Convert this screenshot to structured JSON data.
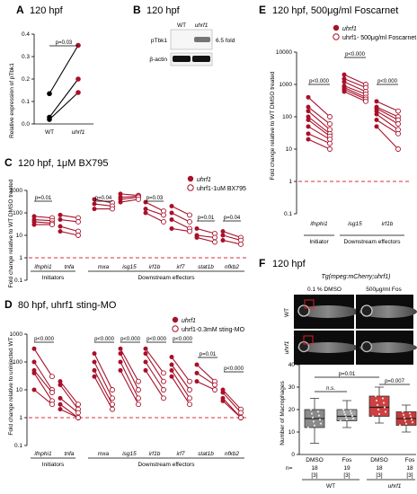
{
  "panels": {
    "A": {
      "letter": "A",
      "title": "120 hpf",
      "ylabel": "Relative expression of pTbk1",
      "xcats": [
        "WT",
        "uhrf1"
      ],
      "p": "p=0.03"
    },
    "B": {
      "letter": "B",
      "title": "120 hpf",
      "lanes": [
        "WT",
        "uhrf1"
      ],
      "rows": [
        "pTbk1",
        "β-actin"
      ],
      "fold": "6.5 fold"
    },
    "C": {
      "letter": "C",
      "title": "120 hpf, 1μM BX795",
      "ylabel": "Fold change relative to WT DMSO treated",
      "legend": [
        "uhrf1",
        "uhrf1-1uM BX795"
      ],
      "genes": [
        "ifnphi1",
        "tnfa",
        "mxa",
        "isg15",
        "irf1b",
        "irf7",
        "stat1b",
        "nfkb2"
      ],
      "groups": [
        "Initiators",
        "Downstream effectors"
      ],
      "pvals": [
        "p=0.01",
        "p=0.04",
        "p=0.03",
        "p=0.01",
        "p=0.04"
      ]
    },
    "D": {
      "letter": "D",
      "title": "80 hpf, uhrf1 sting-MO",
      "ylabel": "Fold change relative to uninjected WT",
      "legend": [
        "uhrf1",
        "uhrf1-0.3mM sting-MO"
      ],
      "genes": [
        "ifnphi1",
        "tnfa",
        "mxa",
        "isg15",
        "irf1b",
        "irf7",
        "stat1b",
        "nfkb2"
      ],
      "groups": [
        "Initiators",
        "Downstream effectors"
      ],
      "pvals": [
        "p<0.000",
        "p<0.000",
        "p<0.000",
        "p<0.000",
        "p<0.000",
        "p=0.01",
        "p<0.000"
      ]
    },
    "E": {
      "letter": "E",
      "title": "120 hpf, 500μg/ml Foscarnet",
      "ylabel": "Fold change relative to WT DMSO treated",
      "legend": [
        "uhrf1",
        "uhrf1- 500μg/ml Foscarnet"
      ],
      "genes": [
        "ifnphi1",
        "isg15",
        "irf1b"
      ],
      "groups": [
        "Initiator",
        "Downstream effectors"
      ],
      "pvals": [
        "p<0.000",
        "p<0.000",
        "p<0.000"
      ]
    },
    "F": {
      "letter": "F",
      "title": "120 hpf",
      "subtitle": "Tg(mpeg:mCherry;uhrf1)",
      "cols": [
        "0.1 % DMSO",
        "500μg/ml Fos"
      ],
      "rows": [
        "WT",
        "uhrf1"
      ],
      "ylabel": "Number of Macrophages",
      "xcats": [
        "DMSO",
        "Fos",
        "DMSO",
        "Fos"
      ],
      "n_label": "n=",
      "n": [
        "18",
        "19",
        "18",
        "18"
      ],
      "bracket": [
        "[3]",
        "[3]",
        "[3]",
        "[3]"
      ],
      "groups": [
        "WT",
        "uhrf1"
      ],
      "pvals": [
        "n.s.",
        "p=0.01",
        "p=0.007"
      ]
    }
  },
  "chart_data": [
    {
      "type": "line",
      "panel": "A",
      "x": [
        "WT",
        "uhrf1"
      ],
      "ylim": [
        0,
        0.4
      ],
      "yticks": [
        0,
        0.1,
        0.2,
        0.3,
        0.4
      ],
      "series": [
        {
          "values": [
            0.135,
            0.35
          ]
        },
        {
          "values": [
            0.03,
            0.2
          ]
        },
        {
          "values": [
            0.02,
            0.14
          ]
        }
      ]
    },
    {
      "type": "line",
      "panel": "C",
      "scale": "log",
      "ylim": [
        0.1,
        1000
      ],
      "yticks": [
        0.1,
        1,
        10,
        100,
        1000
      ],
      "genes": [
        {
          "a": [
            70,
            50,
            40,
            30
          ],
          "b": [
            60,
            45,
            35,
            30
          ]
        },
        {
          "a": [
            80,
            50,
            25,
            15
          ],
          "b": [
            60,
            40,
            15,
            10
          ]
        },
        {
          "a": [
            400,
            250,
            150
          ],
          "b": [
            280,
            200,
            150
          ]
        },
        {
          "a": [
            700,
            500,
            400,
            300
          ],
          "b": [
            600,
            550,
            500,
            400
          ]
        },
        {
          "a": [
            300,
            150,
            100
          ],
          "b": [
            120,
            80,
            40
          ]
        },
        {
          "a": [
            200,
            100,
            50,
            20
          ],
          "b": [
            80,
            40,
            20,
            15
          ]
        },
        {
          "a": [
            20,
            10,
            8
          ],
          "b": [
            12,
            8,
            5
          ]
        },
        {
          "a": [
            15,
            10,
            6
          ],
          "b": [
            8,
            6,
            4
          ]
        }
      ]
    },
    {
      "type": "line",
      "panel": "D",
      "scale": "log",
      "ylim": [
        0.1,
        1000
      ],
      "yticks": [
        0.1,
        1,
        10,
        100,
        1000
      ],
      "genes": [
        {
          "a": [
            300,
            100,
            50,
            40,
            10
          ],
          "b": [
            30,
            10,
            8,
            4,
            3
          ]
        },
        {
          "a": [
            20,
            15,
            5,
            3,
            2
          ],
          "b": [
            3,
            2,
            1.5,
            1,
            1
          ]
        },
        {
          "a": [
            200,
            100,
            50,
            30
          ],
          "b": [
            10,
            5,
            3,
            2
          ]
        },
        {
          "a": [
            300,
            200,
            100,
            50
          ],
          "b": [
            20,
            10,
            5,
            3
          ]
        },
        {
          "a": [
            300,
            200,
            100,
            50
          ],
          "b": [
            40,
            20,
            10,
            5
          ]
        },
        {
          "a": [
            150,
            80,
            50,
            30
          ],
          "b": [
            20,
            10,
            5,
            3
          ]
        },
        {
          "a": [
            80,
            40,
            20
          ],
          "b": [
            20,
            15,
            10
          ]
        },
        {
          "a": [
            10,
            8,
            5,
            4
          ],
          "b": [
            2,
            1.5,
            1,
            1
          ]
        }
      ]
    },
    {
      "type": "line",
      "panel": "E",
      "scale": "log",
      "ylim": [
        0.1,
        10000
      ],
      "yticks": [
        0.1,
        1,
        10,
        100,
        1000,
        10000
      ],
      "genes": [
        {
          "a": [
            400,
            200,
            150,
            100,
            80,
            50,
            30,
            20
          ],
          "b": [
            100,
            60,
            40,
            30,
            25,
            20,
            15,
            10
          ]
        },
        {
          "a": [
            2000,
            1500,
            1200,
            900,
            800,
            700,
            600
          ],
          "b": [
            1000,
            800,
            600,
            500,
            400,
            350,
            300
          ]
        },
        {
          "a": [
            300,
            200,
            180,
            150,
            120,
            80,
            50
          ],
          "b": [
            150,
            100,
            80,
            60,
            40,
            30,
            10
          ]
        }
      ]
    },
    {
      "type": "box",
      "panel": "F",
      "categories": [
        "DMSO",
        "Fos",
        "DMSO",
        "Fos"
      ],
      "ylim": [
        0,
        40
      ],
      "yticks": [
        0,
        10,
        20,
        30,
        40
      ],
      "boxes": [
        {
          "min": 5,
          "q1": 12,
          "median": 16,
          "q3": 20,
          "max": 25
        },
        {
          "min": 12,
          "q1": 15,
          "median": 17,
          "q3": 20,
          "max": 24
        },
        {
          "min": 14,
          "q1": 17,
          "median": 21,
          "q3": 26,
          "max": 30
        },
        {
          "min": 10,
          "q1": 13,
          "median": 16,
          "q3": 19,
          "max": 22
        }
      ]
    }
  ]
}
